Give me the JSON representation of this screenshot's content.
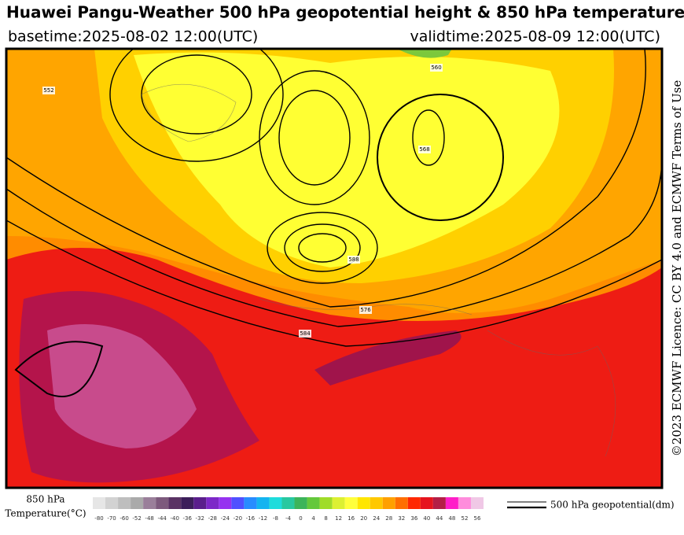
{
  "header": {
    "title": "Huawei Pangu-Weather 500 hPa geopotential height & 850 hPa temperature",
    "basetime": "basetime:2025-08-02 12:00(UTC)",
    "validtime": "validtime:2025-08-09 12:00(UTC)"
  },
  "licence": "©2023 ECMWF Licence: CC BY 4.0 and ECMWF Terms of Use",
  "colorbar": {
    "title_lines": [
      "850 hPa",
      "Temperature(°C)"
    ],
    "labels": [
      -80,
      -70,
      -60,
      -52,
      -48,
      -44,
      -40,
      -36,
      -32,
      -28,
      -24,
      -20,
      -16,
      -12,
      -8,
      -4,
      0,
      4,
      8,
      12,
      16,
      20,
      24,
      28,
      32,
      36,
      40,
      44,
      48,
      52,
      56
    ],
    "colors": [
      "#e6e6e6",
      "#d2d2d2",
      "#bebebe",
      "#aaaaaa",
      "#9a7f9a",
      "#7d5a7d",
      "#5a3264",
      "#3c1e5a",
      "#5a1e8c",
      "#7d28c8",
      "#9632f0",
      "#5050ff",
      "#288cff",
      "#14b4f0",
      "#1edcdc",
      "#28c8a0",
      "#3cb45a",
      "#64c83c",
      "#a0dc28",
      "#dcf032",
      "#ffff3c",
      "#ffe600",
      "#ffc800",
      "#ffa000",
      "#ff6e00",
      "#ff2800",
      "#e6141e",
      "#b41e46",
      "#ff1ec8",
      "#ff8cdc",
      "#f0c8e6"
    ]
  },
  "legend": {
    "label": "500 hPa geopotential(dm)"
  },
  "contour_labels": [
    "560",
    "576",
    "584",
    "588",
    "552",
    "568"
  ]
}
